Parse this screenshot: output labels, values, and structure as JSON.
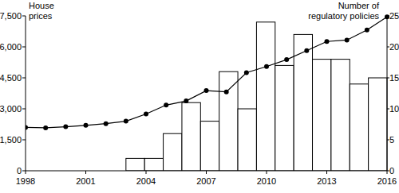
{
  "chart_data": {
    "type": "bar",
    "x": [
      1998,
      1999,
      2000,
      2001,
      2002,
      2003,
      2004,
      2005,
      2006,
      2007,
      2008,
      2009,
      2010,
      2011,
      2012,
      2013,
      2014,
      2015,
      2016
    ],
    "xlim": [
      1998,
      2016
    ],
    "xticks": [
      1998,
      2001,
      2004,
      2007,
      2010,
      2013,
      2016
    ],
    "ylim": [
      0,
      7500
    ],
    "yticks": [
      0,
      {
        "value": 1500,
        "label": "1,500"
      },
      {
        "value": 3000,
        "label": "3,000"
      },
      {
        "value": 4500,
        "label": "4,500"
      },
      {
        "value": 6000,
        "label": "6,000"
      },
      {
        "value": 7500,
        "label": "7,500"
      }
    ],
    "y2lim": [
      0,
      25
    ],
    "y2ticks": [
      0,
      5,
      10,
      15,
      20,
      25
    ],
    "y_label": "House prices",
    "y2_label": "Number of regulatory policies",
    "grid": false,
    "series": [
      {
        "type": "bar",
        "axis": "y2",
        "color": "#ffffff",
        "values": [
          null,
          null,
          null,
          null,
          null,
          2,
          2,
          6,
          11,
          8,
          16,
          10,
          24,
          17,
          22,
          18,
          18,
          14,
          15
        ]
      },
      {
        "type": "line",
        "axis": "y",
        "color": "#000000",
        "marker": "circle",
        "values": [
          2100,
          2080,
          2130,
          2200,
          2280,
          2400,
          2750,
          3180,
          3380,
          3880,
          3820,
          4750,
          5050,
          5380,
          5820,
          6260,
          6330,
          6820,
          7450
        ]
      }
    ]
  }
}
